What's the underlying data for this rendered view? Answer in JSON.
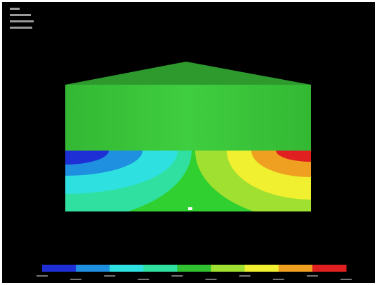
{
  "contour_legend": {
    "colors": [
      "#1f2fd6",
      "#1f8fe0",
      "#2fe0e0",
      "#30e0a0",
      "#30c030",
      "#a0e030",
      "#f0f030",
      "#f0a020",
      "#e02020"
    ]
  }
}
